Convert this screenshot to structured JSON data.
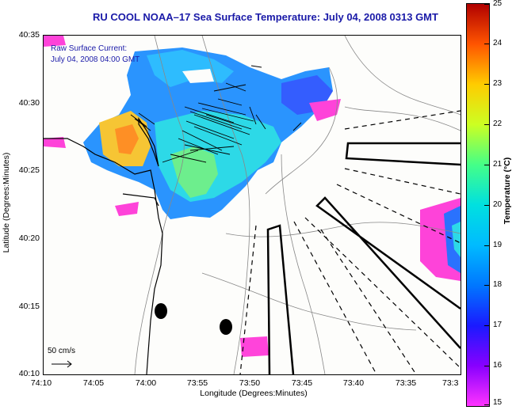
{
  "title": "RU COOL  NOAA–17  Sea Surface Temperature:  July 04, 2008 0313 GMT",
  "annotation": {
    "line1": "Raw Surface Current:",
    "line2": "July 04, 2008 04:00 GMT"
  },
  "scale_label": "50 cm/s",
  "axes": {
    "xlabel": "Longitude (Degrees:Minutes)",
    "ylabel": "Latitude (Degrees:Minutes)",
    "xticks": [
      "74:10",
      "74:05",
      "74:00",
      "73:55",
      "73:50",
      "73:45",
      "73:40",
      "73:35",
      "73:3"
    ],
    "yticks": [
      "40:35",
      "40:30",
      "40:25",
      "40:20",
      "40:15",
      "40:10"
    ]
  },
  "colorbar": {
    "label": "Temperature (°C)",
    "ticks": [
      "25",
      "24",
      "23",
      "22",
      "21",
      "20",
      "19",
      "18",
      "17",
      "16",
      "15"
    ],
    "range": [
      15,
      25
    ]
  },
  "colors": {
    "title": "#1a1aa8",
    "land": "#fdfdfb",
    "coastline": "#000000",
    "contour": "#888888"
  }
}
